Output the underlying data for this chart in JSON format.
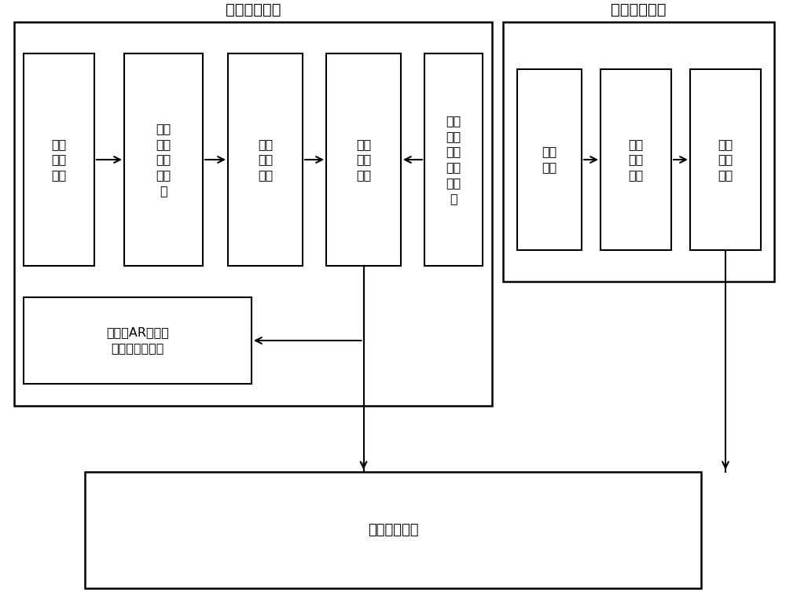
{
  "bg_color": "#ffffff",
  "border_color": "#000000",
  "helmet_label": "脑电采集头盔",
  "emg_device_label": "肌电采集装置",
  "computer_label": "嵌入式计算机",
  "box1_label": "传感\n电极\n阵列",
  "box2_label": "变刚\n度电\n极稳\n定支\n架",
  "box3_label": "脑电\n采集\n模块",
  "box4_label": "脑电\n处理\n模块",
  "box5_label": "头部\n微环\n境温\n度调\n控模\n块",
  "ar_label": "视知觉AR增强现\n实信息显示模块",
  "r1_label": "肌电\n电极",
  "r2_label": "脑电\n采集\n模块",
  "r3_label": "脑电\n处理\n模块"
}
